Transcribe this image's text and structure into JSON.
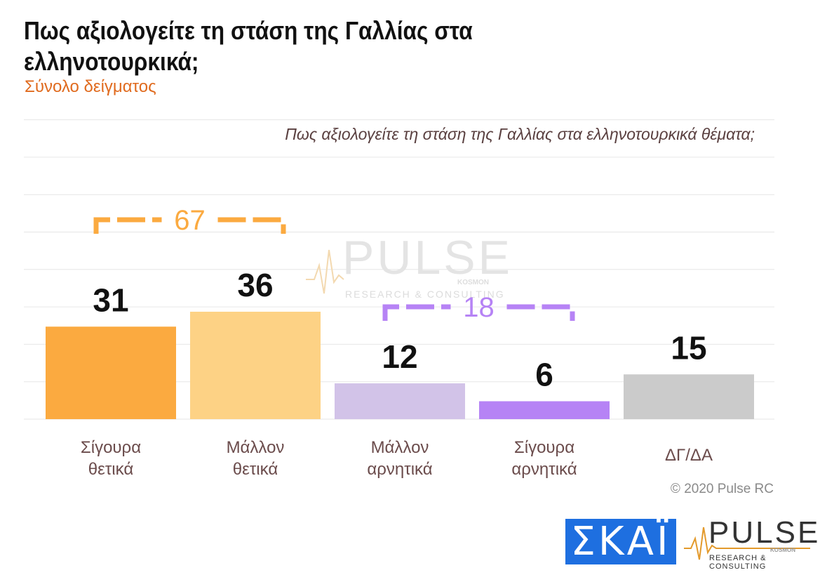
{
  "title": "Πως αξιολογείτε τη στάση της Γαλλίας στα ελληνοτουρκικά;",
  "subtitle": "Σύνολο δείγματος",
  "question": "Πως αξιολογείτε τη στάση της Γαλλίας στα ελληνοτουρκικά θέματα;",
  "copyright": "© 2020 Pulse RC",
  "watermark": {
    "name": "PULSE",
    "kosmon": "KOSMON",
    "tagline": "RESEARCH & CONSULTING"
  },
  "logos": {
    "skai": "ΣΚΑΪ",
    "pulse": "PULSE",
    "kosmon": "KOSMON",
    "tagline": "RESEARCH & CONSULTING"
  },
  "colors": {
    "definitely_positive": "#fbaa40",
    "rather_positive": "#fdd285",
    "rather_negative": "#d2c3e8",
    "definitely_negative": "#b683f5",
    "dk_na": "#cbcbcb",
    "positive_bracket": "#fbaa40",
    "negative_bracket": "#b683f5",
    "skai_blue": "#1e6fe0"
  },
  "chart_data": {
    "type": "bar",
    "categories": [
      [
        "Σίγουρα",
        "θετικά"
      ],
      [
        "Μάλλον",
        "θετικά"
      ],
      [
        "Μάλλον",
        "αρνητικά"
      ],
      [
        "Σίγουρα",
        "αρνητικά"
      ],
      [
        "ΔΓ/ΔΑ"
      ]
    ],
    "values": [
      31,
      36,
      12,
      6,
      15
    ],
    "ylim": [
      0,
      80
    ],
    "grid": true,
    "annotations": [
      {
        "label": "67",
        "span": [
          0,
          1
        ],
        "color": "#fbaa40"
      },
      {
        "label": "18",
        "span": [
          2,
          3
        ],
        "color": "#b683f5"
      }
    ]
  }
}
